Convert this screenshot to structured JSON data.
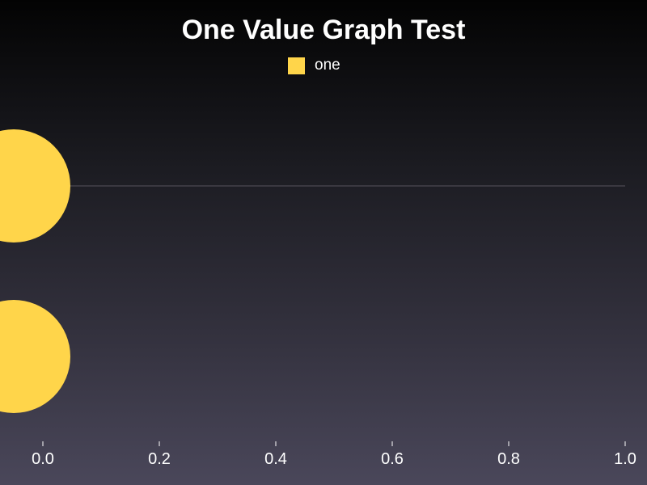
{
  "chart_data": {
    "type": "scatter",
    "title": "One Value Graph Test",
    "xlabel": "",
    "ylabel": "",
    "xlim": [
      0,
      1
    ],
    "x_ticks": [
      "0.0",
      "0.2",
      "0.4",
      "0.6",
      "0.8",
      "1.0"
    ],
    "series": [
      {
        "name": "one",
        "color": "#ffd54a",
        "points": [
          {
            "x": -0.05,
            "y": 1
          },
          {
            "x": -0.05,
            "y": 0
          }
        ]
      }
    ],
    "legend_position": "top-center",
    "grid": true
  }
}
